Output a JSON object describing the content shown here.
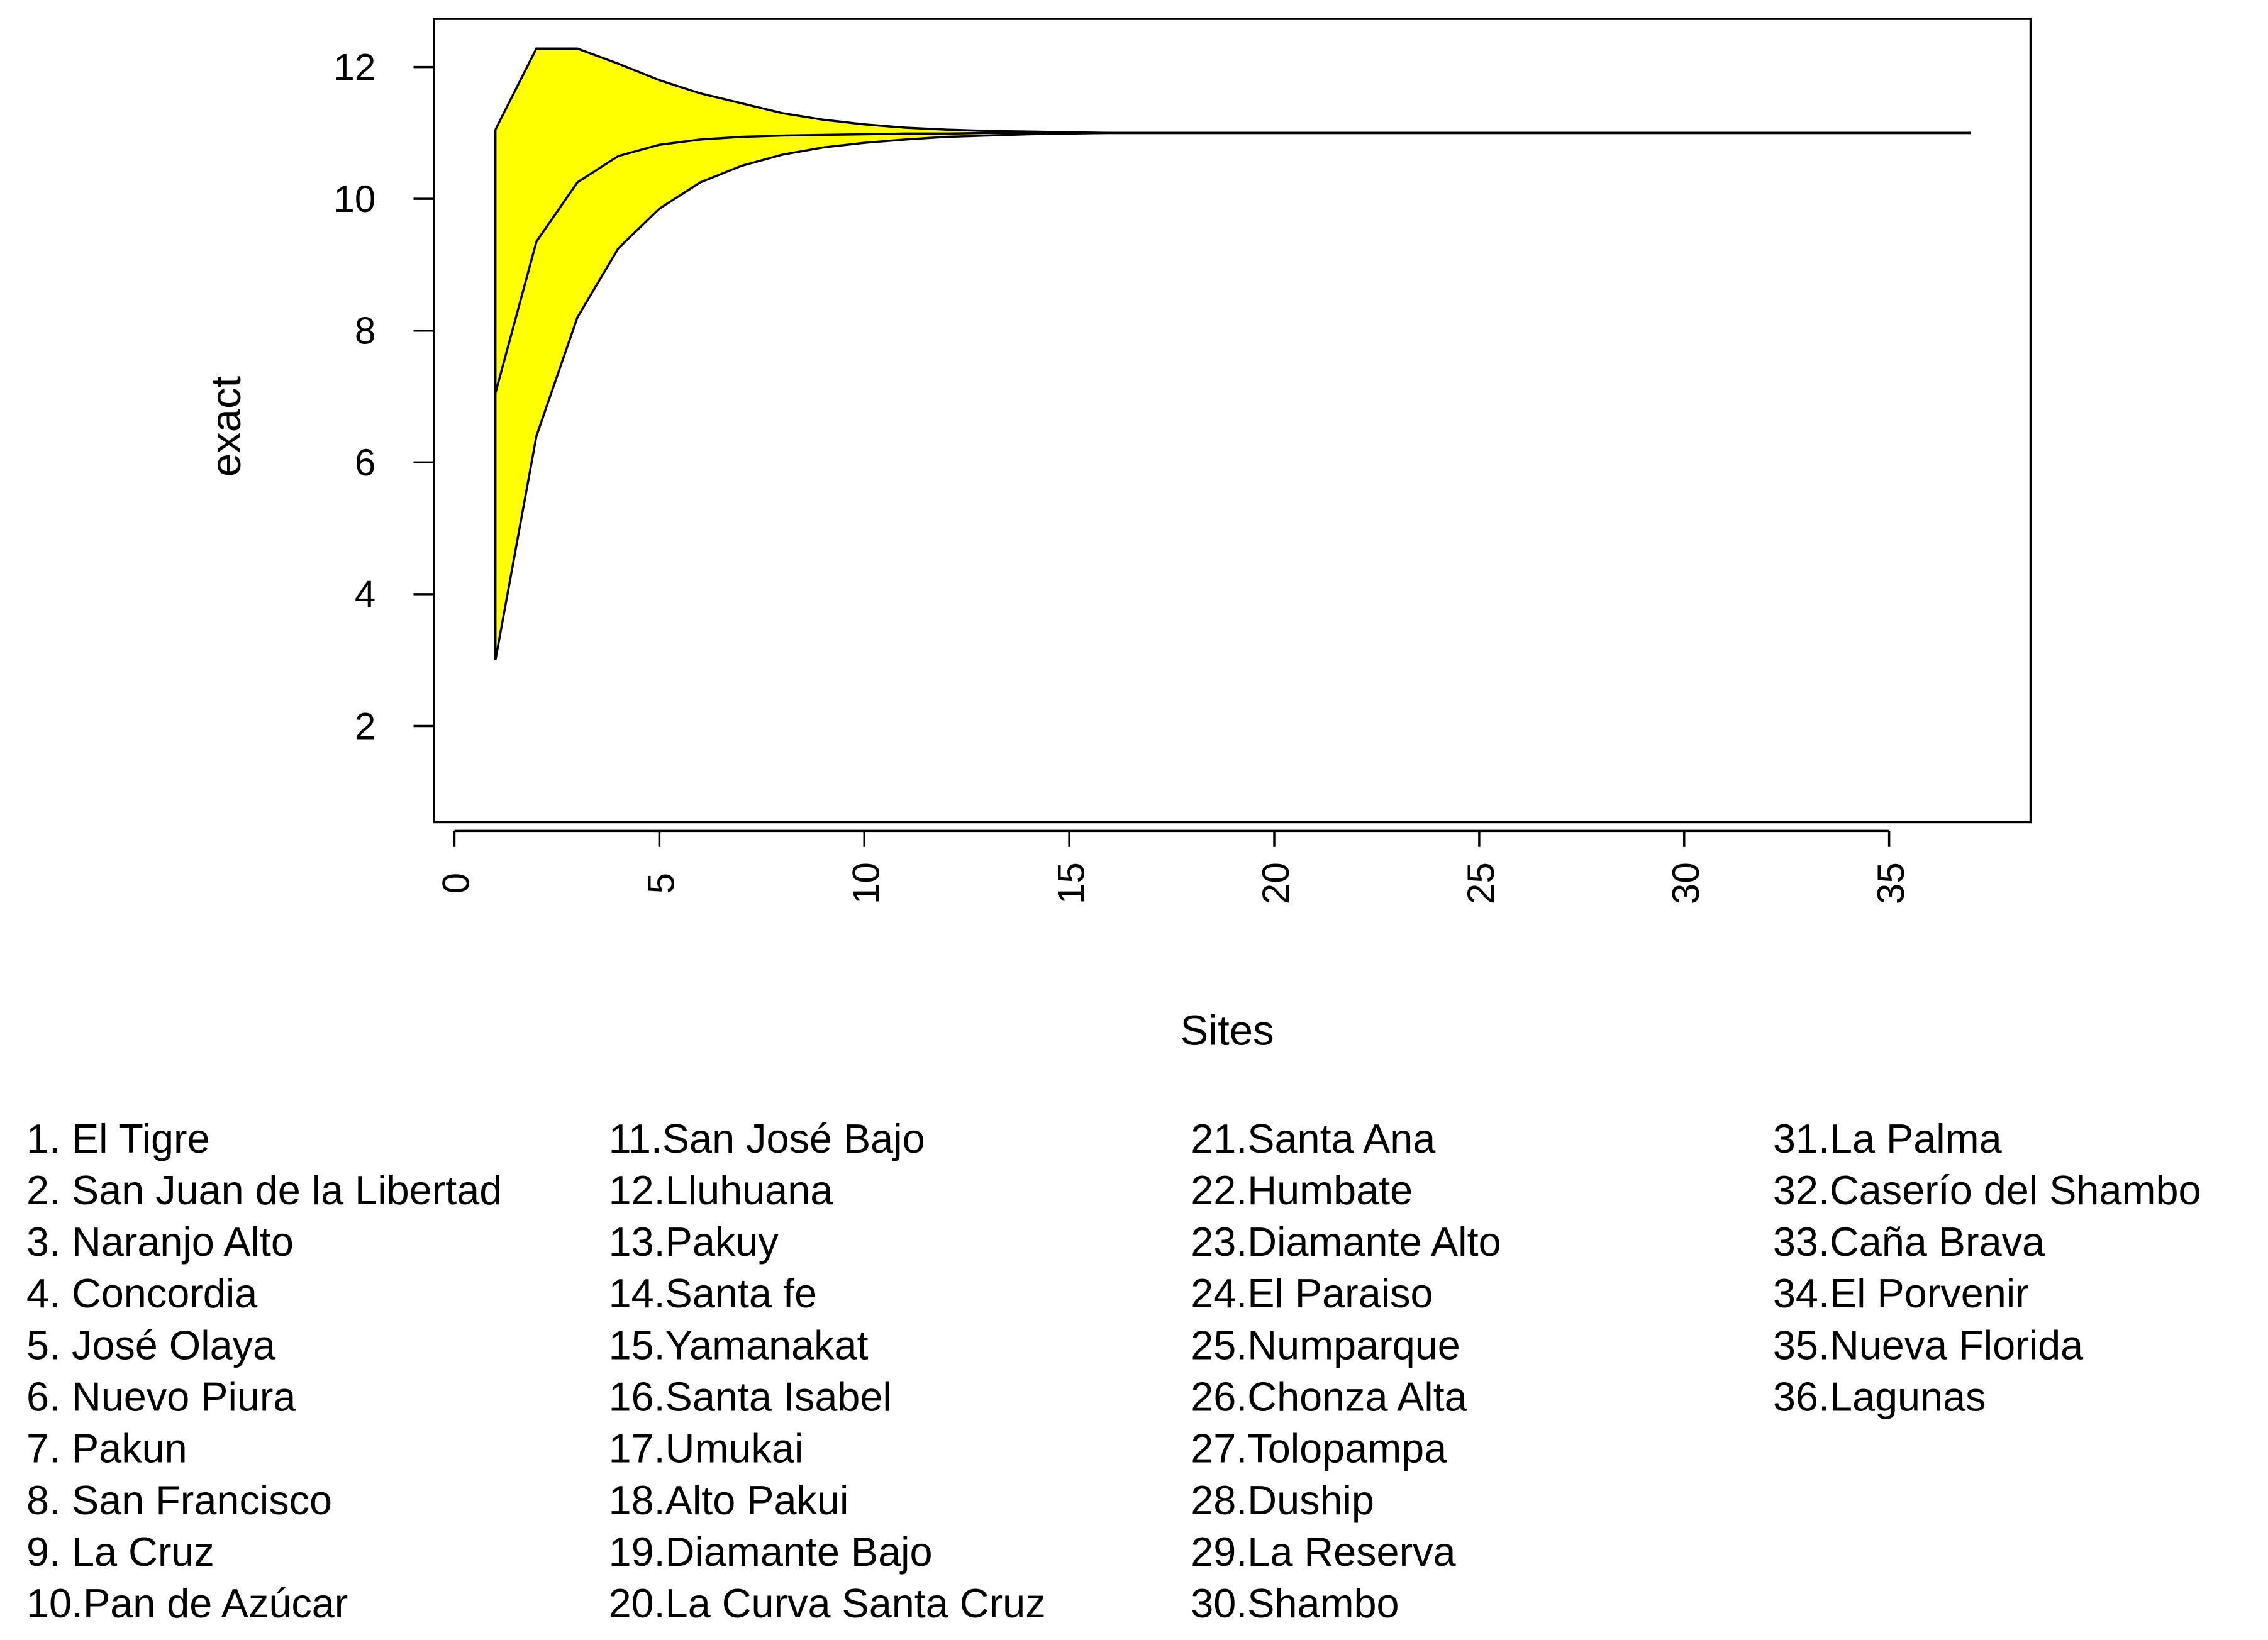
{
  "chart_data": {
    "type": "area-band",
    "x_label": "Sites",
    "y_label": "exact",
    "x": [
      1,
      2,
      3,
      4,
      5,
      6,
      7,
      8,
      9,
      10,
      11,
      12,
      13,
      14,
      15,
      16,
      17,
      18,
      19,
      20,
      21,
      22,
      23,
      24,
      25,
      26,
      27,
      28,
      29,
      30,
      31,
      32,
      33,
      34,
      35,
      36,
      37
    ],
    "series": [
      {
        "color": "#000000",
        "values": [
          11.05,
          12.28,
          12.28,
          12.05,
          11.8,
          11.6,
          11.45,
          11.3,
          11.2,
          11.13,
          11.08,
          11.05,
          11.03,
          11.02,
          11.01,
          11,
          11,
          11,
          11,
          11,
          11,
          11,
          11,
          11,
          11,
          11,
          11,
          11,
          11,
          11,
          11,
          11,
          11,
          11,
          11,
          11,
          11
        ]
      },
      {
        "color": "#000000",
        "values": [
          7.05,
          9.35,
          10.25,
          10.65,
          10.82,
          10.9,
          10.94,
          10.96,
          10.97,
          10.98,
          10.99,
          10.99,
          11,
          11,
          11,
          11,
          11,
          11,
          11,
          11,
          11,
          11,
          11,
          11,
          11,
          11,
          11,
          11,
          11,
          11,
          11,
          11,
          11,
          11,
          11,
          11,
          11
        ]
      },
      {
        "color": "#000000",
        "values": [
          3,
          6.4,
          8.2,
          9.25,
          9.85,
          10.25,
          10.5,
          10.67,
          10.78,
          10.85,
          10.9,
          10.94,
          10.96,
          10.98,
          10.99,
          11,
          11,
          11,
          11,
          11,
          11,
          11,
          11,
          11,
          11,
          11,
          11,
          11,
          11,
          11,
          11,
          11,
          11,
          11,
          11,
          11,
          11
        ]
      }
    ],
    "fill_color": "#ffff00",
    "xlim": [
      -0.5,
      38.45
    ],
    "ylim": [
      0.54,
      12.73
    ],
    "xticks": [
      0,
      5,
      10,
      15,
      20,
      25,
      30,
      35
    ],
    "yticks": [
      2,
      4,
      6,
      8,
      10,
      12
    ],
    "annotations": [
      "1. El Tigre",
      "2. San Juan de la Libertad",
      "3. Naranjo Alto",
      "4. Concordia",
      "5. José Olaya",
      "6. Nuevo Piura",
      "7. Pakun",
      "8. San Francisco",
      "9. La Cruz",
      "10.Pan de Azúcar",
      "11.San José Bajo",
      "12.Lluhuana",
      "13.Pakuy",
      "14.Santa fe",
      "15.Yamanakat",
      "16.Santa Isabel",
      "17.Umukai",
      "18.Alto Pakui",
      "19.Diamante Bajo",
      "20.La Curva Santa Cruz",
      "21.Santa Ana",
      "22.Humbate",
      "23.Diamante Alto",
      "24.El Paraiso",
      "25.Numparque",
      "26.Chonza Alta",
      "27.Tolopampa",
      "28.Duship",
      "29.La Reserva",
      "30.Shambo",
      "31.La Palma",
      "32.Caserío del Shambo",
      "33.Caña Brava",
      "34.El Porvenir",
      "35.Nueva Florida",
      "36.Lagunas"
    ]
  }
}
